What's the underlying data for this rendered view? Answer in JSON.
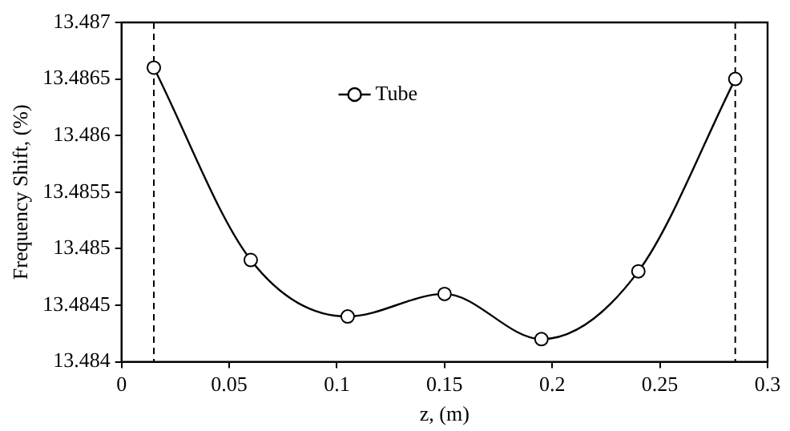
{
  "chart_data": {
    "type": "line",
    "xlabel": "z, (m)",
    "ylabel": "Frequency Shift, (%)",
    "x": [
      0.015,
      0.06,
      0.105,
      0.15,
      0.195,
      0.24,
      0.285
    ],
    "series": [
      {
        "name": "Tube",
        "color": "#000000",
        "values": [
          13.4866,
          13.4849,
          13.4844,
          13.4846,
          13.4842,
          13.4848,
          13.4865
        ]
      }
    ],
    "xlim": [
      0,
      0.3
    ],
    "xticks": [
      0,
      0.05,
      0.1,
      0.15,
      0.2,
      0.25,
      0.3
    ],
    "ylim": [
      13.484,
      13.487
    ],
    "yticks": [
      13.484,
      13.4845,
      13.485,
      13.4855,
      13.486,
      13.4865,
      13.487
    ],
    "ref_lines": [
      {
        "axis": "x",
        "value": 0.015,
        "color": "#000000",
        "line_style": "dashed"
      },
      {
        "axis": "x",
        "value": 0.285,
        "color": "#000000",
        "line_style": "dashed"
      }
    ],
    "marker": "circle",
    "line_style": "solid",
    "grid": false,
    "legend": "top"
  }
}
